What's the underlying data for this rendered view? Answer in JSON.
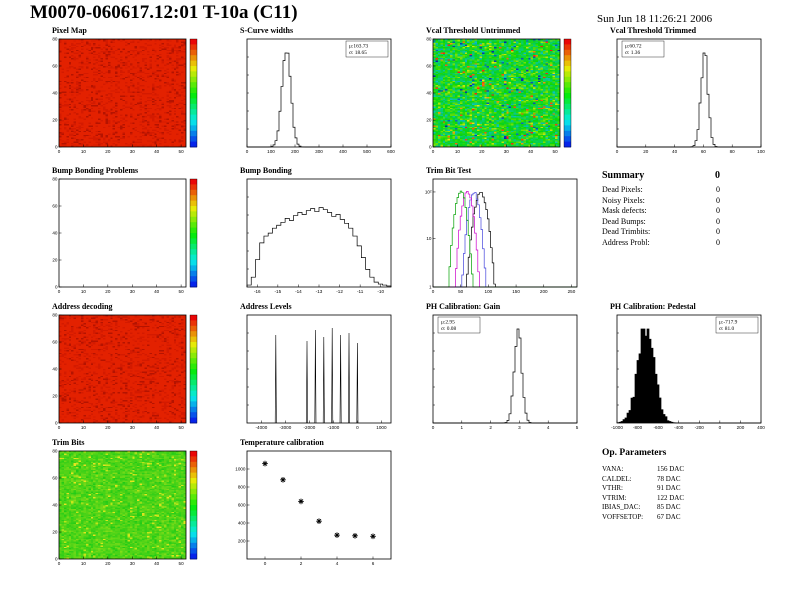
{
  "page": {
    "title": "M0070-060617.12:01 T-10a (C11)",
    "timestamp": "Sun Jun 18 11:26:21 2006"
  },
  "summary": {
    "title": "Summary",
    "value": "0",
    "rows": [
      {
        "label": "Dead Pixels:",
        "value": "0"
      },
      {
        "label": "Noisy Pixels:",
        "value": "0"
      },
      {
        "label": "Mask defects:",
        "value": "0"
      },
      {
        "label": "Dead Bumps:",
        "value": "0"
      },
      {
        "label": "Dead Trimbits:",
        "value": "0"
      },
      {
        "label": "Address Probl:",
        "value": "0"
      }
    ]
  },
  "op_parameters": {
    "title": "Op. Parameters",
    "rows": [
      {
        "label": "VANA:",
        "value": "156 DAC"
      },
      {
        "label": "CALDEL:",
        "value": "78 DAC"
      },
      {
        "label": "VTHR:",
        "value": "91 DAC"
      },
      {
        "label": "VTRIM:",
        "value": "122 DAC"
      },
      {
        "label": "IBIAS_DAC:",
        "value": "85 DAC"
      },
      {
        "label": "VOFFSETOP:",
        "value": "67 DAC"
      }
    ]
  },
  "chart_data": [
    {
      "id": "pixel-map",
      "type": "heatmap",
      "title": "Pixel Map",
      "palette": "solid-red",
      "colorbar": true,
      "nx": 52,
      "ny": 80,
      "x_range": [
        0,
        52
      ],
      "y_range": [
        0,
        80
      ],
      "x_ticks": [
        0,
        10,
        20,
        30,
        40,
        50
      ],
      "y_ticks": [
        0,
        20,
        40,
        60,
        80
      ]
    },
    {
      "id": "scurve-widths",
      "type": "gauss-hist",
      "title": "S-Curve widths",
      "stats": [
        "μ:163.73",
        "σ: 18.65"
      ],
      "stats_pos": "right",
      "mu": 163.73,
      "sigma": 18.65,
      "x_range": [
        0,
        600
      ],
      "x_ticks": [
        0,
        100,
        200,
        300,
        400,
        500,
        600
      ]
    },
    {
      "id": "vcal-untrimmed",
      "type": "heatmap",
      "title": "Vcal Threshold Untrimmed",
      "palette": "noise",
      "colorbar": true,
      "nx": 52,
      "ny": 80,
      "x_range": [
        0,
        52
      ],
      "y_range": [
        0,
        80
      ],
      "x_ticks": [
        0,
        10,
        20,
        30,
        40,
        50
      ],
      "y_ticks": [
        0,
        20,
        40,
        60,
        80
      ]
    },
    {
      "id": "vcal-trimmed",
      "type": "gauss-hist",
      "title": "Vcal Threshold Trimmed",
      "stats": [
        "μ:60.72",
        "σ: 1.36"
      ],
      "stats_pos": "left",
      "mu": 60.72,
      "sigma": 1.36,
      "rsigma": 2.5,
      "x_range": [
        0,
        100
      ],
      "x_ticks": [
        0,
        20,
        40,
        60,
        80,
        100
      ]
    },
    {
      "id": "bump-problems",
      "type": "empty",
      "title": "Bump Bonding Problems",
      "colorbar": true,
      "x_range": [
        0,
        52
      ],
      "y_range": [
        0,
        80
      ],
      "x_ticks": [
        0,
        10,
        20,
        30,
        40,
        50
      ],
      "y_ticks": [
        0,
        20,
        40,
        60,
        80
      ]
    },
    {
      "id": "bump-bonding",
      "type": "step-hist",
      "title": "Bump Bonding",
      "x_range": [
        -16.5,
        -9.5
      ],
      "x_ticks": [
        -16,
        -15,
        -14,
        -13,
        -12,
        -11,
        -10
      ],
      "bins": [
        0.02,
        0.1,
        0.28,
        0.45,
        0.52,
        0.55,
        0.6,
        0.63,
        0.66,
        0.7,
        0.68,
        0.73,
        0.76,
        0.74,
        0.78,
        0.8,
        0.77,
        0.81,
        0.79,
        0.76,
        0.72,
        0.74,
        0.69,
        0.65,
        0.6,
        0.52,
        0.42,
        0.3,
        0.18,
        0.1,
        0.05,
        0.03,
        0.02,
        0.01
      ]
    },
    {
      "id": "trimbit-test",
      "type": "multi-hist",
      "title": "Trim Bit Test",
      "x_range": [
        0,
        260
      ],
      "x_ticks": [
        0,
        50,
        100,
        150,
        200,
        250
      ],
      "y_log_labels": [
        "1",
        "10",
        "10²"
      ],
      "series": [
        {
          "color": "#00a000",
          "mu": 50,
          "sigma": 6
        },
        {
          "color": "#cc00cc",
          "mu": 62,
          "sigma": 6
        },
        {
          "color": "#4444dd",
          "mu": 74,
          "sigma": 6
        },
        {
          "color": "#000000",
          "mu": 86,
          "sigma": 7
        }
      ]
    },
    {
      "id": "address-decoding",
      "type": "heatmap",
      "title": "Address decoding",
      "palette": "solid-red",
      "colorbar": true,
      "nx": 52,
      "ny": 80,
      "x_range": [
        0,
        52
      ],
      "y_range": [
        0,
        80
      ],
      "x_ticks": [
        0,
        10,
        20,
        30,
        40,
        50
      ],
      "y_ticks": [
        0,
        20,
        40,
        60,
        80
      ]
    },
    {
      "id": "address-levels",
      "type": "spikes",
      "title": "Address Levels",
      "x_range": [
        -4600,
        1400
      ],
      "x_ticks": [
        -4000,
        -3000,
        -2000,
        -1000,
        0,
        1000
      ],
      "spikes": [
        {
          "x": -3400,
          "h": 0.88
        },
        {
          "x": -2100,
          "h": 0.82
        },
        {
          "x": -1750,
          "h": 0.93
        },
        {
          "x": -1400,
          "h": 0.86
        },
        {
          "x": -1050,
          "h": 0.95
        },
        {
          "x": -700,
          "h": 0.88
        },
        {
          "x": -350,
          "h": 0.9
        },
        {
          "x": 0,
          "h": 0.8
        }
      ]
    },
    {
      "id": "ph-gain",
      "type": "gauss-hist",
      "title": "PH Calibration: Gain",
      "stats": [
        "μ:2.95",
        "σ: 0.08"
      ],
      "stats_pos": "left",
      "mu": 2.95,
      "sigma": 0.08,
      "rsigma": 0.13,
      "x_range": [
        0,
        5
      ],
      "x_ticks": [
        0,
        1,
        2,
        3,
        4,
        5
      ]
    },
    {
      "id": "ph-pedestal",
      "type": "gauss-hist",
      "title": "PH Calibration: Pedestal",
      "stats": [
        "μ:-717.9",
        "σ: 81.0"
      ],
      "stats_pos": "right",
      "mu": -717.9,
      "sigma": 81.0,
      "fill": true,
      "noise": 0.5,
      "x_range": [
        -1000,
        400
      ],
      "x_ticks": [
        -1000,
        -800,
        -600,
        -400,
        -200,
        0,
        200,
        400
      ]
    },
    {
      "id": "trim-bits",
      "type": "heatmap",
      "title": "Trim Bits",
      "palette": "green",
      "colorbar": true,
      "nx": 52,
      "ny": 80,
      "x_range": [
        0,
        52
      ],
      "y_range": [
        0,
        80
      ],
      "x_ticks": [
        0,
        10,
        20,
        30,
        40,
        50
      ],
      "y_ticks": [
        0,
        20,
        40,
        60,
        80
      ]
    },
    {
      "id": "temp-cal",
      "type": "scatter-star",
      "title": "Temperature calibration",
      "x_range": [
        -1,
        7
      ],
      "y_range": [
        0,
        1200
      ],
      "x_ticks": [
        0,
        2,
        4,
        6
      ],
      "y_ticks": [
        200,
        400,
        600,
        800,
        1000
      ],
      "points": [
        [
          0,
          1060
        ],
        [
          1,
          880
        ],
        [
          2,
          640
        ],
        [
          3,
          420
        ],
        [
          4,
          265
        ],
        [
          5,
          258
        ],
        [
          6,
          252
        ]
      ]
    }
  ]
}
